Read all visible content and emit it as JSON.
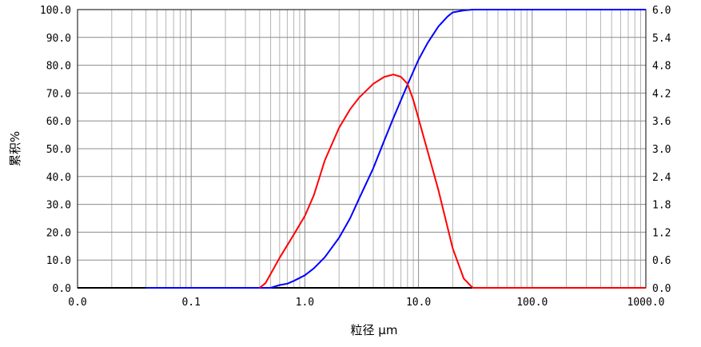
{
  "chart_data": {
    "type": "line",
    "title": "",
    "xlabel": "粒径 μm",
    "ylabel_left": "累积%",
    "ylabel_right": "",
    "x_scale": "log",
    "xlim": [
      0.01,
      1000
    ],
    "ylim_left": [
      0,
      100
    ],
    "ylim_right": [
      0,
      6
    ],
    "grid": true,
    "legend": "none",
    "x_tick_labels": [
      {
        "value": 0.01,
        "label": "0.0"
      },
      {
        "value": 0.1,
        "label": "0.1"
      },
      {
        "value": 1,
        "label": "1.0"
      },
      {
        "value": 10,
        "label": "10.0"
      },
      {
        "value": 100,
        "label": "100.0"
      },
      {
        "value": 1000,
        "label": "1000.0"
      }
    ],
    "y_left_tick_labels": [
      "0.0",
      "10.0",
      "20.0",
      "30.0",
      "40.0",
      "50.0",
      "60.0",
      "70.0",
      "80.0",
      "90.0",
      "100.0"
    ],
    "y_right_tick_labels": [
      "0.0",
      "0.6",
      "1.2",
      "1.8",
      "2.4",
      "3.0",
      "3.6",
      "4.2",
      "4.8",
      "5.4",
      "6.0"
    ],
    "series": [
      {
        "axis": "left",
        "color": "#0000ff",
        "x": [
          0.04,
          0.3,
          0.5,
          0.6,
          0.7,
          0.8,
          1.0,
          1.2,
          1.5,
          2.0,
          2.5,
          3.0,
          4.0,
          5.0,
          6.0,
          8.0,
          10.0,
          12.0,
          15.0,
          18.0,
          20.0,
          25.0,
          30.0,
          1000.0
        ],
        "y": [
          0.0,
          0.0,
          0.0,
          1.0,
          1.5,
          2.5,
          4.5,
          7.0,
          11.0,
          18.0,
          25.0,
          32.0,
          43.0,
          53.0,
          61.0,
          73.0,
          82.0,
          88.0,
          94.0,
          97.5,
          99.0,
          99.7,
          100.0,
          100.0
        ]
      },
      {
        "axis": "right",
        "color": "#ff0000",
        "x": [
          0.4,
          0.45,
          0.5,
          0.6,
          0.8,
          1.0,
          1.2,
          1.5,
          2.0,
          2.5,
          3.0,
          4.0,
          5.0,
          6.0,
          7.0,
          8.0,
          9.0,
          10.0,
          12.0,
          15.0,
          20.0,
          25.0,
          30.0,
          1000.0
        ],
        "y": [
          0.0,
          0.1,
          0.3,
          0.65,
          1.15,
          1.55,
          2.0,
          2.75,
          3.45,
          3.85,
          4.1,
          4.4,
          4.55,
          4.6,
          4.55,
          4.4,
          4.05,
          3.65,
          2.95,
          2.1,
          0.85,
          0.2,
          0.0,
          0.0
        ]
      }
    ]
  }
}
